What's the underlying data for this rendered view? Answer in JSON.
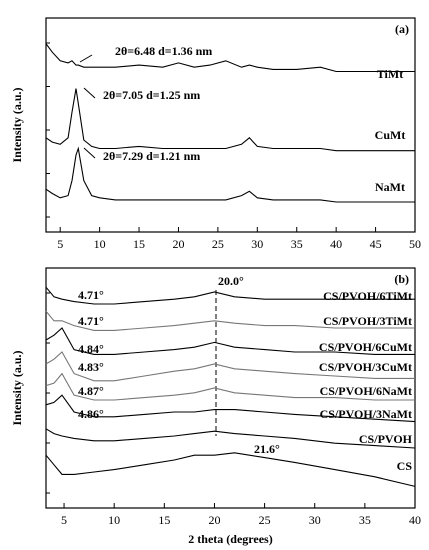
{
  "chart_data": [
    {
      "type": "line",
      "panel_label": "(a)",
      "ylabel": "Intensity (a.u.)",
      "xlim": [
        3.2,
        50
      ],
      "ylim": [
        0,
        100
      ],
      "xticks": [
        5,
        10,
        15,
        20,
        25,
        30,
        35,
        40,
        45,
        50
      ],
      "annotations": [
        "2θ=6.48 d=1.36 nm",
        "2θ=7.05 d=1.25 nm",
        "2θ=7.29 d=1.21 nm"
      ],
      "x": [
        3.2,
        4,
        5,
        6,
        6.5,
        7,
        7.3,
        8,
        9,
        10,
        12,
        15,
        18,
        20,
        22,
        24,
        26,
        28,
        29,
        30,
        32,
        35,
        38,
        40,
        45,
        50
      ],
      "series": [
        {
          "name": "TiMt",
          "color": "#000000",
          "values": [
            88,
            84,
            80,
            79,
            80,
            78,
            78,
            77,
            77,
            77,
            77,
            78,
            77,
            79,
            77,
            78,
            80,
            77,
            78,
            77,
            76,
            76,
            77,
            75,
            75,
            75
          ]
        },
        {
          "name": "CuMt",
          "color": "#000000",
          "values": [
            44,
            42,
            41,
            44,
            56,
            67,
            60,
            43,
            40,
            39,
            39,
            40,
            39,
            39,
            39,
            39,
            39,
            41,
            44,
            40,
            39,
            39,
            39,
            38,
            38,
            38
          ]
        },
        {
          "name": "NaMt",
          "color": "#000000",
          "values": [
            20,
            18,
            16,
            17,
            24,
            36,
            39,
            24,
            17,
            16,
            15,
            15,
            15,
            15,
            15,
            15,
            15,
            17,
            19,
            16,
            15,
            15,
            15,
            14,
            14,
            14
          ]
        }
      ]
    },
    {
      "type": "line",
      "panel_label": "(b)",
      "ylabel": "Intensity (a.u.)",
      "xlabel": "2 theta (degrees)",
      "xlim": [
        3.2,
        40
      ],
      "ylim": [
        0,
        100
      ],
      "xticks": [
        5,
        10,
        15,
        20,
        25,
        30,
        35,
        40
      ],
      "annotations": [
        "4.71°",
        "4.71°",
        "4.84°",
        "4.83°",
        "4.87°",
        "4.86°",
        "20.0°",
        "21.6°"
      ],
      "x": [
        3.2,
        4,
        4.8,
        6,
        8,
        10,
        13,
        16,
        18,
        20,
        22,
        25,
        28,
        32,
        36,
        40
      ],
      "series": [
        {
          "name": "CS/PVOH/6TiMt",
          "color": "#000000",
          "values": [
            92,
            88,
            87,
            86,
            85,
            85,
            86,
            87,
            88,
            90,
            88,
            87,
            87,
            87,
            87,
            87
          ]
        },
        {
          "name": "CS/PVOH/3TiMt",
          "color": "#777777",
          "values": [
            82,
            78,
            78,
            76,
            74,
            74,
            75,
            76,
            77,
            78,
            77,
            76,
            76,
            75,
            75,
            75
          ]
        },
        {
          "name": "CS/PVOH/6CuMt",
          "color": "#000000",
          "values": [
            70,
            72,
            75,
            66,
            64,
            64,
            65,
            66,
            67,
            69,
            67,
            66,
            65,
            65,
            64,
            64
          ]
        },
        {
          "name": "CS/PVOH/3CuMt",
          "color": "#777777",
          "values": [
            60,
            62,
            65,
            56,
            53,
            53,
            55,
            57,
            58,
            60,
            58,
            57,
            56,
            55,
            54,
            54
          ]
        },
        {
          "name": "CS/PVOH/6NaMt",
          "color": "#777777",
          "values": [
            51,
            52,
            56,
            47,
            45,
            45,
            46,
            47,
            48,
            50,
            48,
            47,
            46,
            46,
            45,
            45
          ]
        },
        {
          "name": "CS/PVOH/3NaMt",
          "color": "#000000",
          "values": [
            43,
            44,
            47,
            40,
            38,
            38,
            39,
            40,
            40,
            41,
            41,
            40,
            39,
            38,
            37,
            36
          ]
        },
        {
          "name": "CS/PVOH",
          "color": "#000000",
          "values": [
            33,
            31,
            30,
            29,
            28,
            28,
            29,
            30,
            31,
            32,
            31,
            30,
            29,
            27,
            26,
            25
          ]
        },
        {
          "name": "CS",
          "color": "#000000",
          "values": [
            22,
            18,
            14,
            14,
            15,
            16,
            18,
            20,
            22,
            22,
            23,
            21,
            19,
            16,
            13,
            9
          ]
        }
      ]
    }
  ]
}
